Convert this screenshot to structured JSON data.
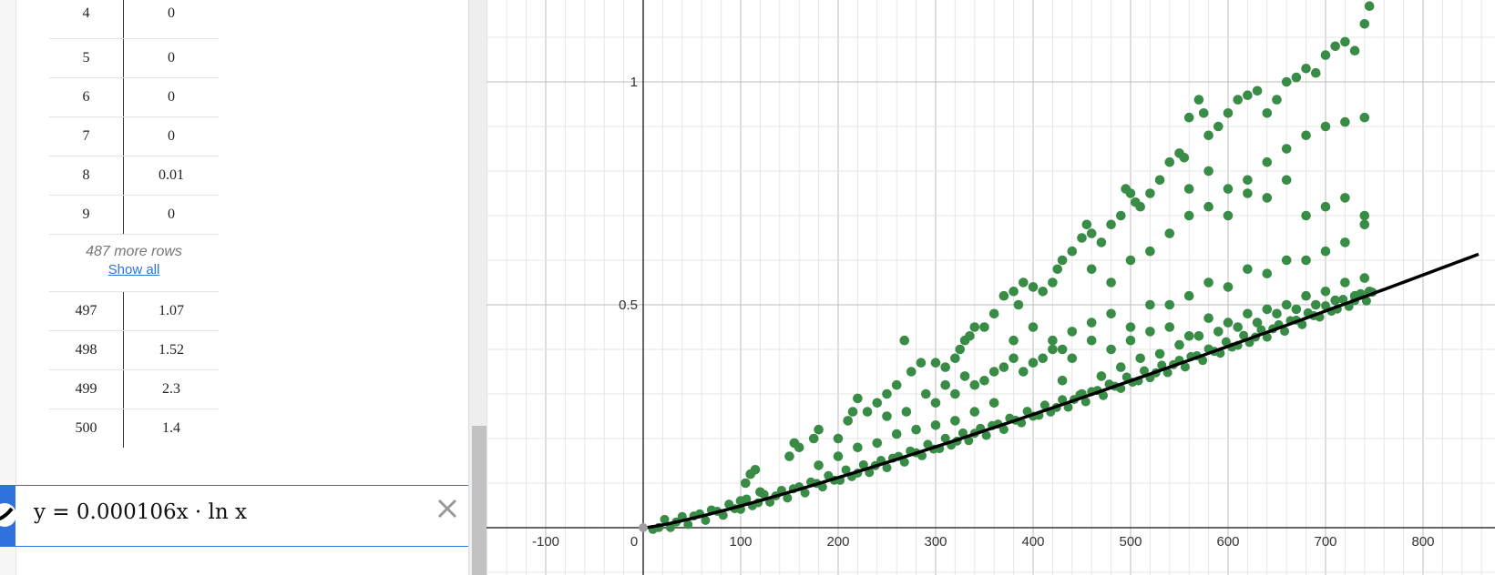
{
  "table": {
    "top_rows": [
      {
        "x": "4",
        "y": "0"
      },
      {
        "x": "5",
        "y": "0"
      },
      {
        "x": "6",
        "y": "0"
      },
      {
        "x": "7",
        "y": "0"
      },
      {
        "x": "8",
        "y": "0.01"
      },
      {
        "x": "9",
        "y": "0"
      }
    ],
    "more_rows_text": "487 more rows",
    "show_all_label": "Show all",
    "bottom_rows": [
      {
        "x": "497",
        "y": "1.07"
      },
      {
        "x": "498",
        "y": "1.52"
      },
      {
        "x": "499",
        "y": "2.3"
      },
      {
        "x": "500",
        "y": "1.4"
      }
    ]
  },
  "expression": {
    "text": "y = 0.000106x · ln x",
    "delete_icon": "close-icon",
    "color_icon": "curve-icon",
    "accent_color": "#2f72dc",
    "curve_color": "#000000"
  },
  "chart_data": {
    "type": "scatter",
    "x_ticks": [
      "-100",
      "0",
      "100",
      "200",
      "300",
      "400",
      "500",
      "600",
      "700",
      "800"
    ],
    "y_ticks": [
      "0.5",
      "1"
    ],
    "xlim": [
      -160,
      860
    ],
    "ylim": [
      -0.1,
      1.18
    ],
    "grid": true,
    "point_color": "#388c46",
    "series": [
      {
        "type": "line",
        "expr": "y = 0.000106x · ln x",
        "color": "#000000"
      },
      {
        "type": "scatter",
        "color": "#388c46",
        "x_range": [
          10,
          750
        ],
        "y_range": [
          0.0,
          1.17
        ]
      }
    ],
    "points": [
      [
        100,
        0.06
      ],
      [
        105,
        0.1
      ],
      [
        110,
        0.12
      ],
      [
        115,
        0.13
      ],
      [
        120,
        0.08
      ],
      [
        150,
        0.16
      ],
      [
        155,
        0.19
      ],
      [
        160,
        0.18
      ],
      [
        175,
        0.2
      ],
      [
        180,
        0.22
      ],
      [
        200,
        0.2
      ],
      [
        210,
        0.24
      ],
      [
        215,
        0.26
      ],
      [
        220,
        0.29
      ],
      [
        230,
        0.26
      ],
      [
        240,
        0.28
      ],
      [
        250,
        0.3
      ],
      [
        260,
        0.32
      ],
      [
        268,
        0.42
      ],
      [
        275,
        0.35
      ],
      [
        285,
        0.37
      ],
      [
        300,
        0.37
      ],
      [
        310,
        0.36
      ],
      [
        320,
        0.38
      ],
      [
        325,
        0.4
      ],
      [
        330,
        0.42
      ],
      [
        335,
        0.43
      ],
      [
        340,
        0.45
      ],
      [
        350,
        0.45
      ],
      [
        360,
        0.48
      ],
      [
        370,
        0.52
      ],
      [
        380,
        0.53
      ],
      [
        385,
        0.5
      ],
      [
        390,
        0.55
      ],
      [
        400,
        0.54
      ],
      [
        410,
        0.53
      ],
      [
        420,
        0.55
      ],
      [
        425,
        0.58
      ],
      [
        430,
        0.6
      ],
      [
        440,
        0.62
      ],
      [
        450,
        0.65
      ],
      [
        455,
        0.68
      ],
      [
        460,
        0.66
      ],
      [
        470,
        0.64
      ],
      [
        480,
        0.68
      ],
      [
        490,
        0.7
      ],
      [
        495,
        0.76
      ],
      [
        500,
        0.75
      ],
      [
        505,
        0.73
      ],
      [
        510,
        0.72
      ],
      [
        520,
        0.75
      ],
      [
        530,
        0.78
      ],
      [
        540,
        0.82
      ],
      [
        550,
        0.84
      ],
      [
        555,
        0.83
      ],
      [
        560,
        0.92
      ],
      [
        570,
        0.96
      ],
      [
        575,
        0.93
      ],
      [
        580,
        0.88
      ],
      [
        590,
        0.9
      ],
      [
        600,
        0.93
      ],
      [
        610,
        0.96
      ],
      [
        620,
        0.97
      ],
      [
        630,
        0.98
      ],
      [
        640,
        0.93
      ],
      [
        650,
        0.96
      ],
      [
        660,
        1.0
      ],
      [
        670,
        1.01
      ],
      [
        680,
        1.03
      ],
      [
        690,
        1.02
      ],
      [
        700,
        1.06
      ],
      [
        710,
        1.08
      ],
      [
        720,
        1.09
      ],
      [
        730,
        1.07
      ],
      [
        740,
        1.13
      ],
      [
        745,
        1.17
      ],
      [
        300,
        0.28
      ],
      [
        320,
        0.3
      ],
      [
        340,
        0.32
      ],
      [
        360,
        0.35
      ],
      [
        380,
        0.38
      ],
      [
        400,
        0.37
      ],
      [
        420,
        0.42
      ],
      [
        440,
        0.44
      ],
      [
        460,
        0.46
      ],
      [
        480,
        0.48
      ],
      [
        500,
        0.45
      ],
      [
        520,
        0.5
      ],
      [
        540,
        0.5
      ],
      [
        560,
        0.52
      ],
      [
        580,
        0.55
      ],
      [
        600,
        0.54
      ],
      [
        620,
        0.58
      ],
      [
        640,
        0.57
      ],
      [
        660,
        0.6
      ],
      [
        680,
        0.6
      ],
      [
        700,
        0.62
      ],
      [
        720,
        0.64
      ],
      [
        740,
        0.7
      ],
      [
        460,
        0.58
      ],
      [
        480,
        0.55
      ],
      [
        500,
        0.6
      ],
      [
        520,
        0.62
      ],
      [
        540,
        0.66
      ],
      [
        560,
        0.7
      ],
      [
        580,
        0.72
      ],
      [
        600,
        0.7
      ],
      [
        620,
        0.75
      ],
      [
        640,
        0.74
      ],
      [
        660,
        0.78
      ],
      [
        680,
        0.7
      ],
      [
        700,
        0.72
      ],
      [
        720,
        0.74
      ],
      [
        740,
        0.68
      ],
      [
        380,
        0.42
      ],
      [
        400,
        0.45
      ],
      [
        420,
        0.4
      ],
      [
        440,
        0.38
      ],
      [
        460,
        0.42
      ],
      [
        480,
        0.4
      ],
      [
        500,
        0.42
      ],
      [
        520,
        0.44
      ],
      [
        540,
        0.45
      ],
      [
        560,
        0.43
      ],
      [
        580,
        0.47
      ],
      [
        600,
        0.46
      ],
      [
        620,
        0.48
      ],
      [
        640,
        0.49
      ],
      [
        660,
        0.5
      ],
      [
        680,
        0.52
      ],
      [
        700,
        0.53
      ],
      [
        720,
        0.55
      ],
      [
        740,
        0.56
      ],
      [
        430,
        0.33
      ],
      [
        450,
        0.3
      ],
      [
        470,
        0.34
      ],
      [
        490,
        0.36
      ],
      [
        510,
        0.38
      ],
      [
        530,
        0.39
      ],
      [
        550,
        0.41
      ],
      [
        570,
        0.43
      ],
      [
        590,
        0.44
      ],
      [
        610,
        0.45
      ],
      [
        630,
        0.46
      ],
      [
        650,
        0.48
      ],
      [
        670,
        0.49
      ],
      [
        690,
        0.5
      ],
      [
        710,
        0.51
      ],
      [
        730,
        0.52
      ],
      [
        745,
        0.53
      ],
      [
        180,
        0.14
      ],
      [
        200,
        0.16
      ],
      [
        220,
        0.18
      ],
      [
        240,
        0.19
      ],
      [
        260,
        0.21
      ],
      [
        280,
        0.22
      ],
      [
        300,
        0.23
      ],
      [
        320,
        0.24
      ],
      [
        340,
        0.26
      ],
      [
        360,
        0.28
      ],
      [
        250,
        0.25
      ],
      [
        270,
        0.26
      ],
      [
        290,
        0.3
      ],
      [
        310,
        0.32
      ],
      [
        330,
        0.34
      ],
      [
        350,
        0.33
      ],
      [
        370,
        0.36
      ],
      [
        390,
        0.35
      ],
      [
        410,
        0.38
      ],
      [
        430,
        0.4
      ],
      [
        640,
        0.82
      ],
      [
        660,
        0.85
      ],
      [
        680,
        0.88
      ],
      [
        700,
        0.9
      ],
      [
        720,
        0.91
      ],
      [
        740,
        0.92
      ],
      [
        600,
        0.76
      ],
      [
        620,
        0.78
      ],
      [
        580,
        0.8
      ],
      [
        560,
        0.76
      ]
    ]
  }
}
